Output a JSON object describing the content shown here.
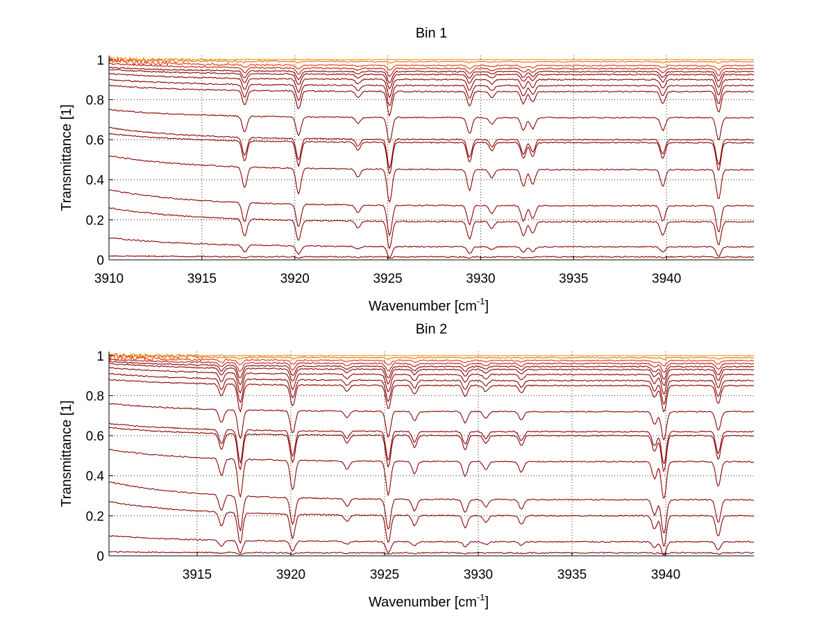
{
  "chart_data": [
    {
      "type": "line",
      "title": "Bin 1",
      "xlabel_text": "Wavenumber [cm",
      "xlabel_sup": "-1",
      "xlabel_close": "]",
      "ylabel": "Transmittance [1]",
      "xlim": [
        3910,
        3944.7
      ],
      "ylim": [
        0,
        1.02
      ],
      "xticks": [
        3910,
        3915,
        3920,
        3925,
        3930,
        3935,
        3940
      ],
      "xtick_labels": [
        "3910",
        "3915",
        "3920",
        "3925",
        "3930",
        "3935",
        "3940"
      ],
      "yticks": [
        0,
        0.2,
        0.4,
        0.6,
        0.8,
        1
      ],
      "ytick_labels": [
        "0",
        "0.2",
        "0.4",
        "0.6",
        "0.8",
        "1"
      ],
      "grid": true,
      "line_colors": [
        "#8b0000",
        "#b81a0a",
        "#dd3a0a",
        "#f46a0a",
        "#f4a020"
      ],
      "absorption_lines": [
        {
          "x": 3917.3,
          "depth": 0.1
        },
        {
          "x": 3920.2,
          "depth": 0.12
        },
        {
          "x": 3923.4,
          "depth": 0.04
        },
        {
          "x": 3925.1,
          "depth": 0.16
        },
        {
          "x": 3929.4,
          "depth": 0.1
        },
        {
          "x": 3930.6,
          "depth": 0.04
        },
        {
          "x": 3932.3,
          "depth": 0.08
        },
        {
          "x": 3932.8,
          "depth": 0.07
        },
        {
          "x": 3939.8,
          "depth": 0.08
        },
        {
          "x": 3942.8,
          "depth": 0.14
        }
      ],
      "series": [
        {
          "baseline": 1.0,
          "start": 1.0,
          "absorb": 0.0
        },
        {
          "baseline": 0.99,
          "start": 1.0,
          "absorb": 0.05
        },
        {
          "baseline": 0.97,
          "start": 0.99,
          "absorb": 0.15
        },
        {
          "baseline": 0.955,
          "start": 0.98,
          "absorb": 0.25
        },
        {
          "baseline": 0.94,
          "start": 0.96,
          "absorb": 0.35
        },
        {
          "baseline": 0.925,
          "start": 0.95,
          "absorb": 0.45
        },
        {
          "baseline": 0.9,
          "start": 0.93,
          "absorb": 0.55
        },
        {
          "baseline": 0.87,
          "start": 0.9,
          "absorb": 0.65
        },
        {
          "baseline": 0.84,
          "start": 0.87,
          "absorb": 0.75
        },
        {
          "baseline": 0.71,
          "start": 0.75,
          "absorb": 0.8
        },
        {
          "baseline": 0.6,
          "start": 0.66,
          "absorb": 0.9
        },
        {
          "baseline": 0.585,
          "start": 0.63,
          "absorb": 1.0
        },
        {
          "baseline": 0.45,
          "start": 0.52,
          "absorb": 1.05
        },
        {
          "baseline": 0.27,
          "start": 0.35,
          "absorb": 0.95
        },
        {
          "baseline": 0.19,
          "start": 0.26,
          "absorb": 0.85
        },
        {
          "baseline": 0.065,
          "start": 0.11,
          "absorb": 0.35
        },
        {
          "baseline": 0.015,
          "start": 0.02,
          "absorb": 0.05
        }
      ]
    },
    {
      "type": "line",
      "title": "Bin 2",
      "xlabel_text": "Wavenumber [cm",
      "xlabel_sup": "-1",
      "xlabel_close": "]",
      "ylabel": "Transmittance [1]",
      "xlim": [
        3910.3,
        3944.7
      ],
      "ylim": [
        0,
        1.02
      ],
      "xticks": [
        3915,
        3920,
        3925,
        3930,
        3935,
        3940
      ],
      "xtick_labels": [
        "3915",
        "3920",
        "3925",
        "3930",
        "3935",
        "3940"
      ],
      "yticks": [
        0,
        0.2,
        0.4,
        0.6,
        0.8,
        1
      ],
      "ytick_labels": [
        "0",
        "0.2",
        "0.4",
        "0.6",
        "0.8",
        "1"
      ],
      "grid": true,
      "line_colors": [
        "#8b0000",
        "#b81a0a",
        "#dd3a0a",
        "#f46a0a",
        "#f4a020"
      ],
      "absorption_lines": [
        {
          "x": 3916.3,
          "depth": 0.08
        },
        {
          "x": 3917.3,
          "depth": 0.18
        },
        {
          "x": 3920.1,
          "depth": 0.14
        },
        {
          "x": 3923.0,
          "depth": 0.04
        },
        {
          "x": 3925.2,
          "depth": 0.16
        },
        {
          "x": 3926.6,
          "depth": 0.06
        },
        {
          "x": 3929.3,
          "depth": 0.07
        },
        {
          "x": 3930.4,
          "depth": 0.04
        },
        {
          "x": 3932.3,
          "depth": 0.05
        },
        {
          "x": 3939.4,
          "depth": 0.08
        },
        {
          "x": 3939.9,
          "depth": 0.18
        },
        {
          "x": 3942.8,
          "depth": 0.12
        }
      ],
      "series": [
        {
          "baseline": 1.0,
          "start": 1.0,
          "absorb": 0.0
        },
        {
          "baseline": 0.99,
          "start": 1.0,
          "absorb": 0.05
        },
        {
          "baseline": 0.975,
          "start": 0.99,
          "absorb": 0.15
        },
        {
          "baseline": 0.96,
          "start": 0.98,
          "absorb": 0.25
        },
        {
          "baseline": 0.945,
          "start": 0.97,
          "absorb": 0.35
        },
        {
          "baseline": 0.93,
          "start": 0.96,
          "absorb": 0.45
        },
        {
          "baseline": 0.905,
          "start": 0.94,
          "absorb": 0.55
        },
        {
          "baseline": 0.875,
          "start": 0.91,
          "absorb": 0.65
        },
        {
          "baseline": 0.85,
          "start": 0.88,
          "absorb": 0.75
        },
        {
          "baseline": 0.72,
          "start": 0.76,
          "absorb": 0.8
        },
        {
          "baseline": 0.62,
          "start": 0.66,
          "absorb": 0.9
        },
        {
          "baseline": 0.6,
          "start": 0.64,
          "absorb": 1.0
        },
        {
          "baseline": 0.47,
          "start": 0.53,
          "absorb": 1.05
        },
        {
          "baseline": 0.28,
          "start": 0.37,
          "absorb": 0.95
        },
        {
          "baseline": 0.2,
          "start": 0.27,
          "absorb": 0.85
        },
        {
          "baseline": 0.07,
          "start": 0.1,
          "absorb": 0.35
        },
        {
          "baseline": 0.015,
          "start": 0.02,
          "absorb": 0.05
        }
      ]
    }
  ]
}
